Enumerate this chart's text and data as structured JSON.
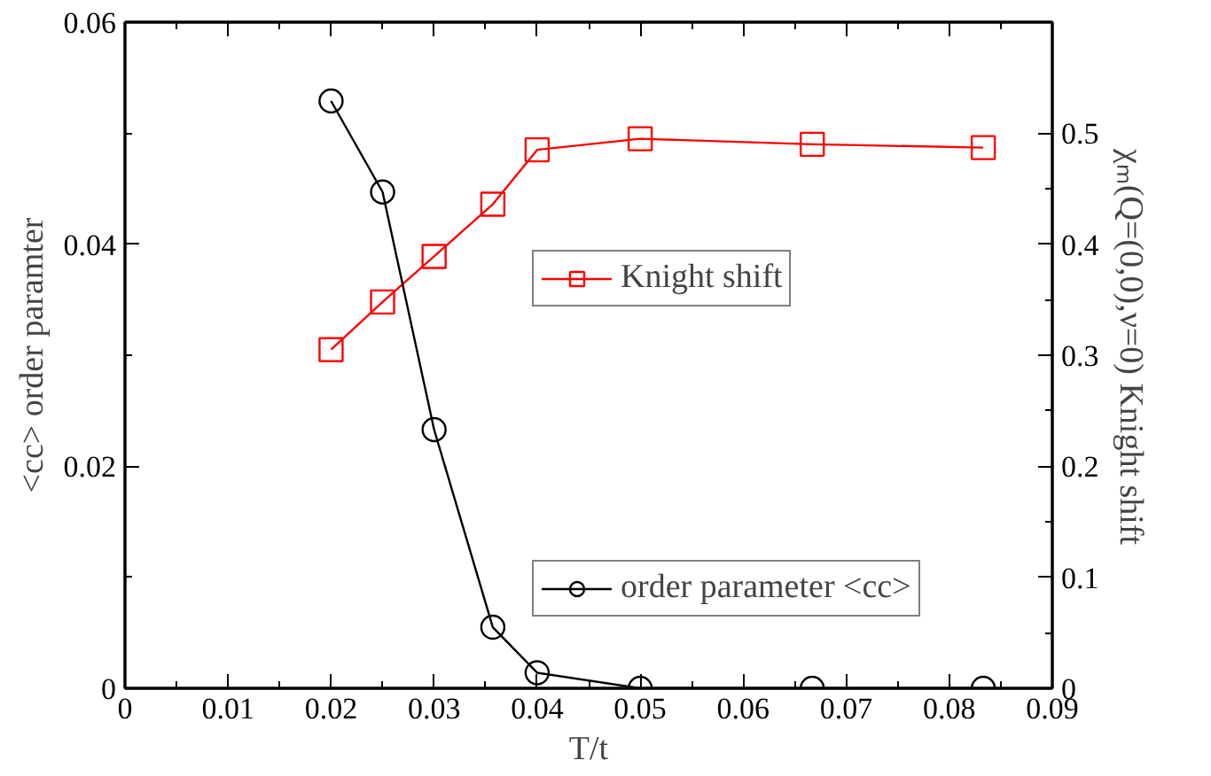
{
  "chart_data": {
    "type": "line",
    "xlabel": "T/t",
    "ylabel": "<cc> order paramter",
    "y2label": "χₘ(Q=(0,0),ν=0)   Knight shift",
    "xlim": [
      0,
      0.09
    ],
    "xticks": [
      0,
      0.01,
      0.02,
      0.03,
      0.04,
      0.05,
      0.06,
      0.07,
      0.08,
      0.09
    ],
    "ylim": [
      0,
      0.06
    ],
    "yticks": [
      0,
      0.02,
      0.04,
      0.06
    ],
    "y2lim": [
      0,
      0.6
    ],
    "y2ticks": [
      0,
      0.1,
      0.2,
      0.3,
      0.4,
      0.5
    ],
    "grid": false,
    "legend": "right",
    "line_style": "solid",
    "series": [
      {
        "name": "Knight shift",
        "color": "#ff0000",
        "marker": "square",
        "axis": "y2",
        "x": [
          0.02,
          0.025,
          0.03,
          0.0357,
          0.04,
          0.05,
          0.0667,
          0.0833
        ],
        "values": [
          0.305,
          0.348,
          0.389,
          0.436,
          0.485,
          0.495,
          0.49,
          0.487
        ]
      },
      {
        "name": "order parameter <cc>",
        "color": "#000000",
        "marker": "circle",
        "x": [
          0.02,
          0.025,
          0.03,
          0.0357,
          0.04,
          0.05,
          0.0667,
          0.0833
        ],
        "values": [
          0.0529,
          0.0447,
          0.0233,
          0.0055,
          0.0014,
          0,
          0,
          0
        ]
      }
    ]
  }
}
